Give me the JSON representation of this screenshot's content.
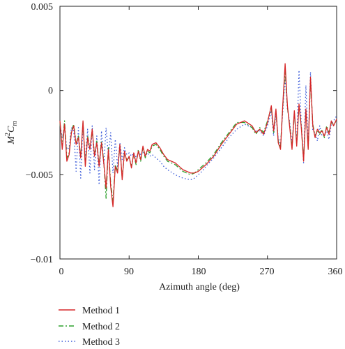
{
  "chart_data": {
    "type": "line",
    "title": "",
    "xlabel": "Azimuth angle (deg)",
    "ylabel_main": "M",
    "ylabel_sup": "2",
    "ylabel_tail": "C",
    "ylabel_sub": "m",
    "xlim": [
      0,
      360
    ],
    "ylim": [
      -0.01,
      0.005
    ],
    "xticks": [
      0,
      90,
      180,
      270,
      360
    ],
    "xtick_labels": [
      "0",
      "90",
      "180",
      "270",
      "360"
    ],
    "yticks": [
      -0.01,
      -0.005,
      0,
      0.005
    ],
    "ytick_labels": [
      "−0.01",
      "−0.005",
      "0",
      "0.005"
    ],
    "grid": false,
    "legend_position": "bottom-left",
    "series": [
      {
        "name": "Method 1",
        "color": "#d62728",
        "dash": "",
        "x": [
          0,
          3,
          6,
          9,
          12,
          15,
          18,
          21,
          24,
          27,
          30,
          33,
          36,
          39,
          42,
          45,
          48,
          51,
          54,
          57,
          60,
          63,
          66,
          69,
          72,
          75,
          78,
          81,
          84,
          87,
          90,
          93,
          96,
          99,
          102,
          105,
          108,
          111,
          114,
          117,
          120,
          125,
          130,
          135,
          140,
          150,
          160,
          170,
          175,
          180,
          185,
          190,
          200,
          210,
          220,
          230,
          240,
          250,
          255,
          260,
          265,
          270,
          275,
          278,
          281,
          284,
          287,
          290,
          293,
          296,
          299,
          302,
          305,
          308,
          311,
          314,
          317,
          320,
          323,
          326,
          329,
          332,
          335,
          338,
          341,
          344,
          347,
          350,
          353,
          356,
          360
        ],
        "y": [
          -0.0018,
          -0.0035,
          -0.002,
          -0.0042,
          -0.0038,
          -0.0025,
          -0.0021,
          -0.0032,
          -0.0028,
          -0.004,
          -0.0018,
          -0.0045,
          -0.0028,
          -0.0035,
          -0.0023,
          -0.0039,
          -0.0031,
          -0.0045,
          -0.0031,
          -0.0043,
          -0.0058,
          -0.0035,
          -0.0057,
          -0.0069,
          -0.0045,
          -0.0049,
          -0.0032,
          -0.0053,
          -0.0036,
          -0.0042,
          -0.0039,
          -0.0046,
          -0.0037,
          -0.0043,
          -0.0036,
          -0.0041,
          -0.0033,
          -0.0039,
          -0.0035,
          -0.0036,
          -0.0032,
          -0.0031,
          -0.0034,
          -0.0038,
          -0.0041,
          -0.0043,
          -0.0047,
          -0.0049,
          -0.0049,
          -0.0048,
          -0.0046,
          -0.0044,
          -0.0039,
          -0.0032,
          -0.0026,
          -0.002,
          -0.0018,
          -0.0021,
          -0.0025,
          -0.0023,
          -0.0026,
          -0.0019,
          -0.0009,
          -0.0024,
          -0.0011,
          -0.0031,
          -0.0035,
          -0.0008,
          0.0016,
          -0.0009,
          -0.0022,
          -0.0035,
          -0.0012,
          -0.0033,
          -0.0008,
          -0.0022,
          -0.0042,
          -0.0011,
          -0.0035,
          0.0008,
          -0.0021,
          -0.0028,
          -0.0023,
          -0.0025,
          -0.0024,
          -0.0027,
          -0.0022,
          -0.0026,
          -0.0018,
          -0.0021,
          -0.0017
        ]
      },
      {
        "name": "Method 2",
        "color": "#2ca02c",
        "dash": "7,3,2,3",
        "x": [
          0,
          3,
          6,
          9,
          12,
          15,
          18,
          21,
          24,
          27,
          30,
          33,
          36,
          39,
          42,
          45,
          48,
          51,
          54,
          57,
          60,
          63,
          66,
          69,
          72,
          75,
          78,
          81,
          84,
          87,
          90,
          93,
          96,
          99,
          102,
          105,
          108,
          111,
          114,
          117,
          120,
          125,
          130,
          135,
          140,
          150,
          160,
          170,
          175,
          180,
          185,
          190,
          200,
          210,
          220,
          230,
          240,
          250,
          255,
          260,
          265,
          270,
          275,
          278,
          281,
          284,
          287,
          290,
          293,
          296,
          299,
          302,
          305,
          308,
          311,
          314,
          317,
          320,
          323,
          326,
          329,
          332,
          335,
          338,
          341,
          344,
          347,
          350,
          353,
          356,
          360
        ],
        "y": [
          -0.0019,
          -0.0033,
          -0.0018,
          -0.004,
          -0.0037,
          -0.0024,
          -0.002,
          -0.0031,
          -0.0027,
          -0.0039,
          -0.0019,
          -0.0044,
          -0.0027,
          -0.0034,
          -0.0024,
          -0.0038,
          -0.003,
          -0.0044,
          -0.003,
          -0.0042,
          -0.0064,
          -0.0034,
          -0.0055,
          -0.0066,
          -0.0044,
          -0.0048,
          -0.0033,
          -0.0052,
          -0.0037,
          -0.0041,
          -0.004,
          -0.0045,
          -0.0038,
          -0.0044,
          -0.0035,
          -0.0042,
          -0.0034,
          -0.004,
          -0.0036,
          -0.0037,
          -0.0033,
          -0.0032,
          -0.0035,
          -0.0039,
          -0.0042,
          -0.0044,
          -0.0048,
          -0.005,
          -0.0049,
          -0.0047,
          -0.0045,
          -0.0043,
          -0.0038,
          -0.0031,
          -0.0025,
          -0.0019,
          -0.0019,
          -0.0022,
          -0.0026,
          -0.0022,
          -0.0025,
          -0.0018,
          -0.001,
          -0.0025,
          -0.0012,
          -0.003,
          -0.0034,
          -0.0009,
          0.0012,
          -0.001,
          -0.0021,
          -0.0034,
          -0.0013,
          -0.0032,
          -0.0009,
          -0.0021,
          -0.0041,
          -0.0012,
          -0.0034,
          0.0006,
          -0.002,
          -0.0027,
          -0.0024,
          -0.0026,
          -0.0023,
          -0.0028,
          -0.0021,
          -0.0025,
          -0.0019,
          -0.002,
          -0.0018
        ]
      },
      {
        "name": "Method 3",
        "color": "#3b5bd9",
        "dash": "1.5,3",
        "x": [
          0,
          3,
          6,
          9,
          12,
          15,
          18,
          21,
          24,
          27,
          30,
          33,
          36,
          39,
          42,
          45,
          48,
          51,
          54,
          57,
          60,
          63,
          66,
          69,
          72,
          75,
          78,
          81,
          84,
          87,
          90,
          93,
          96,
          99,
          102,
          105,
          108,
          111,
          114,
          117,
          120,
          125,
          130,
          135,
          140,
          150,
          160,
          170,
          175,
          180,
          185,
          190,
          200,
          210,
          220,
          230,
          240,
          250,
          255,
          260,
          265,
          270,
          275,
          278,
          281,
          284,
          287,
          290,
          293,
          296,
          299,
          302,
          305,
          308,
          311,
          314,
          317,
          320,
          323,
          326,
          329,
          332,
          335,
          338,
          341,
          344,
          347,
          350,
          353,
          356,
          360
        ],
        "y": [
          -0.002,
          -0.0028,
          -0.0022,
          -0.0035,
          -0.0034,
          -0.0022,
          -0.0024,
          -0.0048,
          -0.0022,
          -0.0052,
          -0.0021,
          -0.0041,
          -0.0023,
          -0.0049,
          -0.0021,
          -0.0047,
          -0.0027,
          -0.0056,
          -0.0024,
          -0.0044,
          -0.0022,
          -0.0039,
          -0.0025,
          -0.0049,
          -0.0029,
          -0.0045,
          -0.0031,
          -0.0041,
          -0.0034,
          -0.0038,
          -0.0037,
          -0.0039,
          -0.0037,
          -0.004,
          -0.0037,
          -0.0038,
          -0.0036,
          -0.0039,
          -0.0037,
          -0.0039,
          -0.0038,
          -0.004,
          -0.0042,
          -0.0045,
          -0.0047,
          -0.005,
          -0.0052,
          -0.0053,
          -0.0052,
          -0.005,
          -0.0048,
          -0.0045,
          -0.004,
          -0.0034,
          -0.0028,
          -0.0023,
          -0.002,
          -0.0022,
          -0.0024,
          -0.0024,
          -0.0027,
          -0.0021,
          -0.0012,
          -0.0027,
          -0.0014,
          -0.0028,
          -0.0032,
          -0.0012,
          0.0008,
          -0.0011,
          -0.0019,
          -0.0032,
          -0.0013,
          -0.0031,
          0.0012,
          -0.002,
          -0.0043,
          0.0003,
          -0.0033,
          0.0011,
          -0.0024,
          -0.0025,
          -0.003,
          -0.0021,
          -0.0027,
          -0.0026,
          -0.0024,
          -0.0029,
          -0.002,
          -0.0018,
          -0.0015
        ]
      }
    ]
  }
}
